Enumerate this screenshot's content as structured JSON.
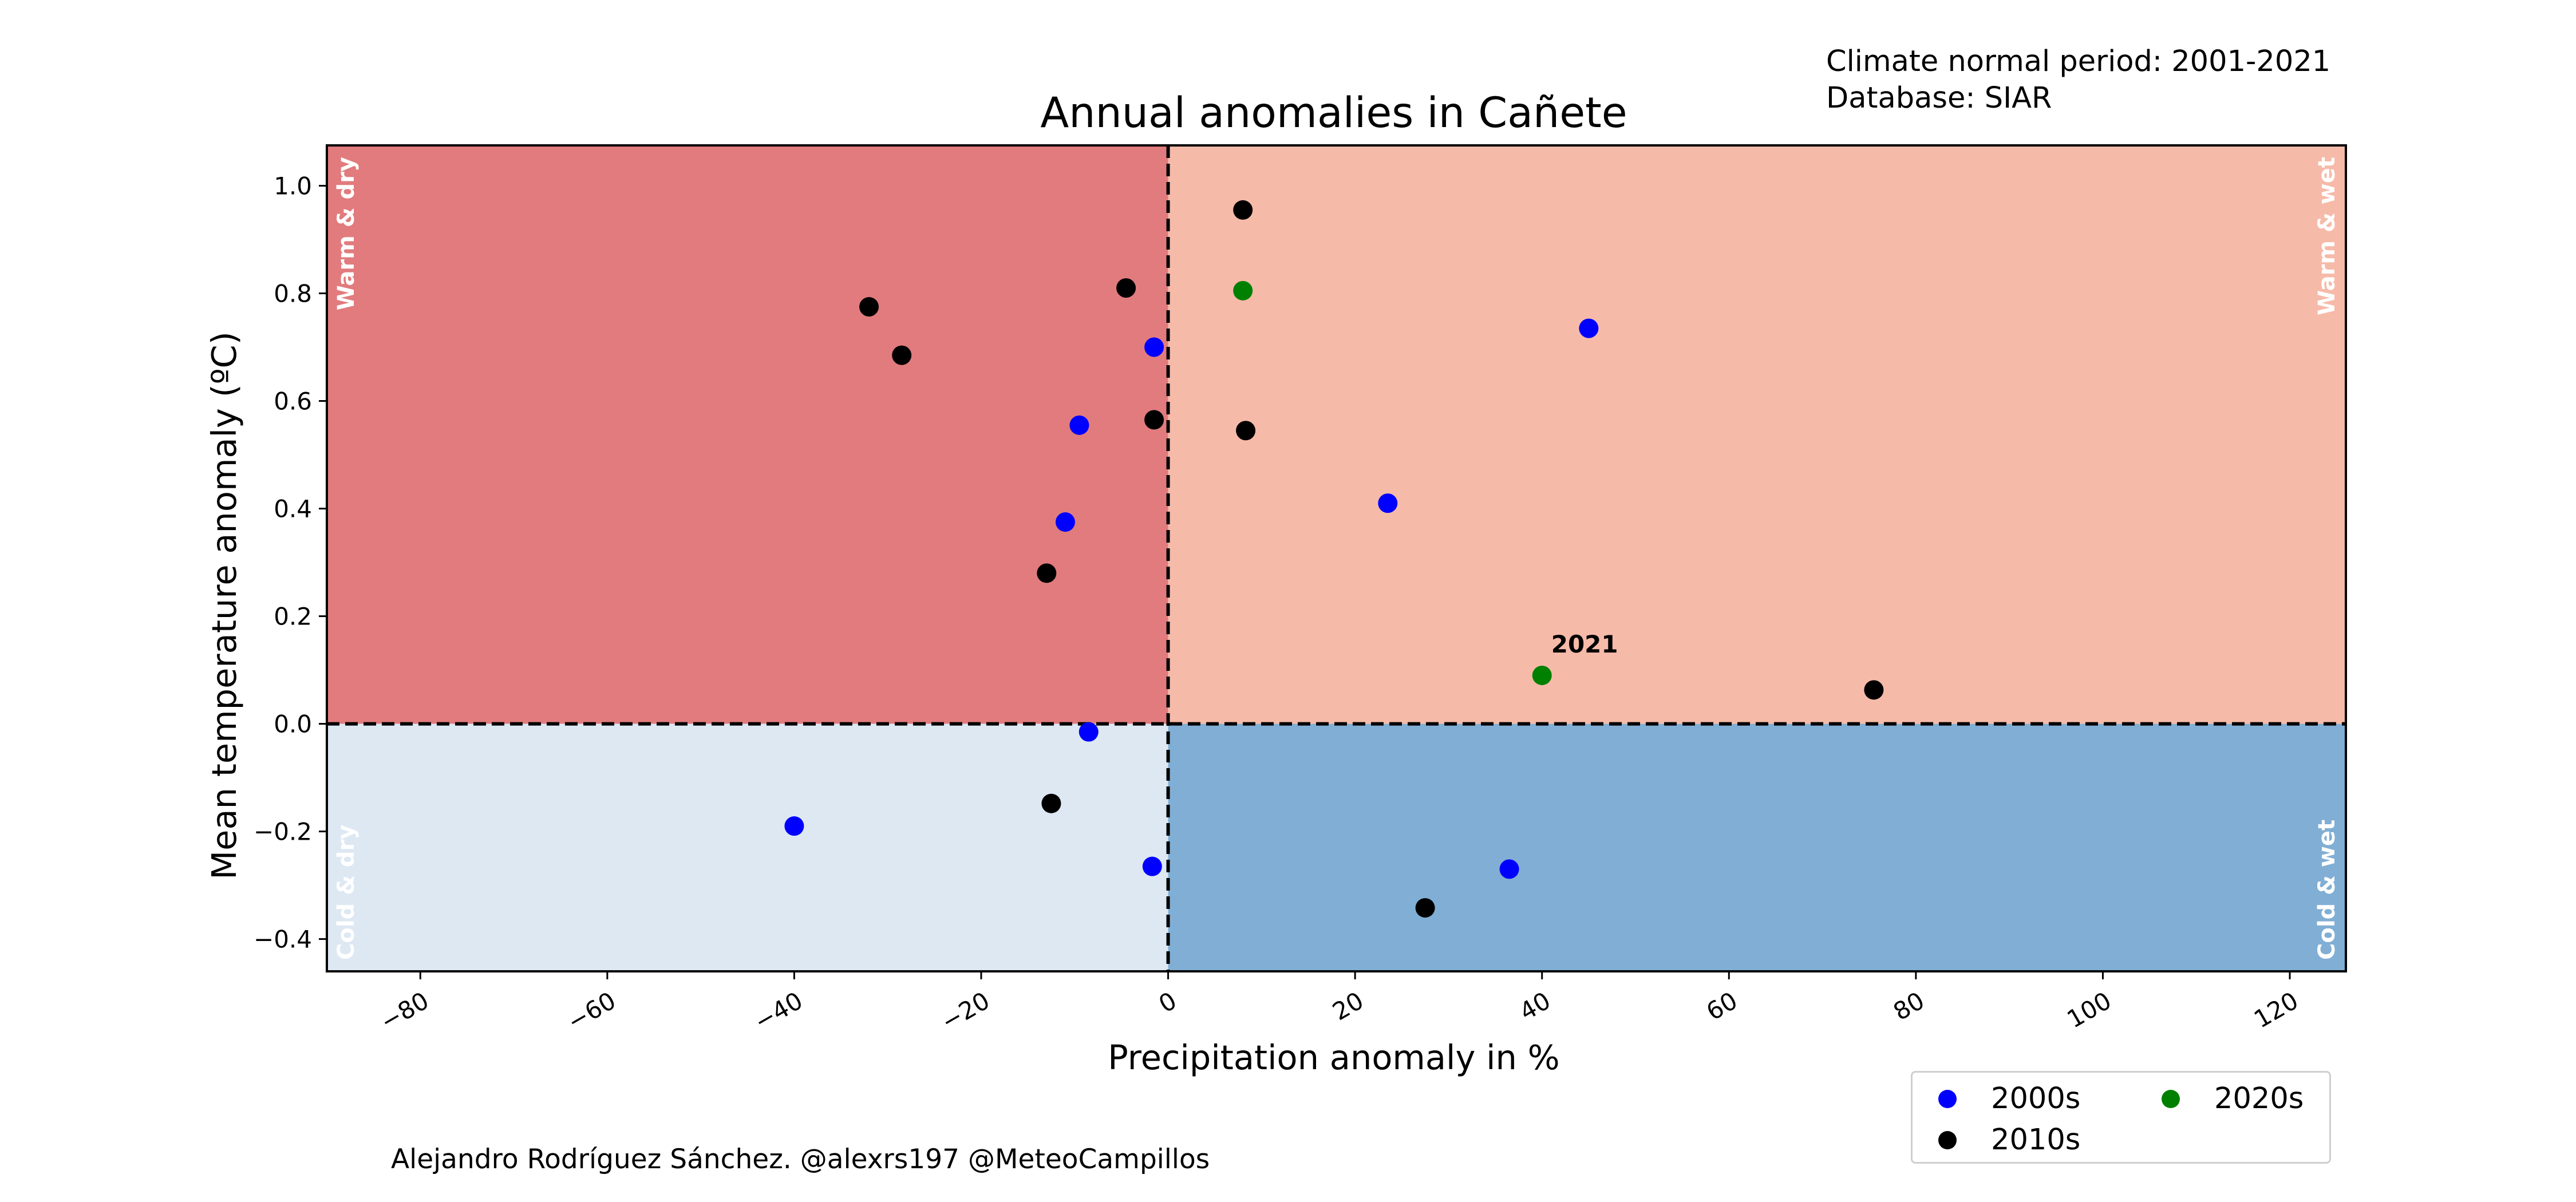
{
  "meta": {
    "period": "Climate normal period: 2001-2021",
    "database": "Database: SIAR"
  },
  "credit": "Alejandro Rodríguez Sánchez. @alexrs197 @MeteoCampillos",
  "colors": {
    "2000s": "#0000ff",
    "2010s": "#000000",
    "2020s": "#008000",
    "warm_dry": "#e17b7d",
    "warm_wet": "#f6baa9",
    "cold_dry": "#dde8f3",
    "cold_wet": "#81aed4"
  },
  "chart_data": {
    "type": "scatter",
    "title": "Annual anomalies in Cañete",
    "xlabel": "Precipitation anomaly in %",
    "ylabel": "Mean temperature anomaly (ºC)",
    "xlim": [
      -90,
      126
    ],
    "ylim": [
      -0.46,
      1.075
    ],
    "xticks": [
      -80,
      -60,
      -40,
      -20,
      0,
      20,
      40,
      60,
      80,
      100,
      120
    ],
    "yticks": [
      -0.4,
      -0.2,
      0.0,
      0.2,
      0.4,
      0.6,
      0.8,
      1.0
    ],
    "xtick_labels": [
      "−80",
      "−60",
      "−40",
      "−20",
      "0",
      "20",
      "40",
      "60",
      "80",
      "100",
      "120"
    ],
    "ytick_labels": [
      "−0.4",
      "−0.2",
      "0.0",
      "0.2",
      "0.4",
      "0.6",
      "0.8",
      "1.0"
    ],
    "quadrant_labels": {
      "warm_dry": "Warm & dry",
      "warm_wet": "Warm & wet",
      "cold_dry": "Cold & dry",
      "cold_wet": "Cold & wet"
    },
    "grid": false,
    "legend_position": "below-right",
    "series": [
      {
        "name": "2000s",
        "points": [
          [
            -40,
            -0.19
          ],
          [
            -11,
            0.375
          ],
          [
            -9.5,
            0.555
          ],
          [
            -8.5,
            -0.015
          ],
          [
            -1.5,
            0.7
          ],
          [
            -1.7,
            -0.265
          ],
          [
            23.5,
            0.41
          ],
          [
            36.5,
            -0.27
          ],
          [
            45,
            0.735
          ]
        ]
      },
      {
        "name": "2010s",
        "points": [
          [
            -32,
            0.775
          ],
          [
            -28.5,
            0.685
          ],
          [
            -13,
            0.28
          ],
          [
            -12.5,
            -0.148
          ],
          [
            -4.5,
            0.81
          ],
          [
            -1.5,
            0.565
          ],
          [
            8,
            0.955
          ],
          [
            8.3,
            0.545
          ],
          [
            27.5,
            -0.342
          ],
          [
            75.5,
            0.063
          ]
        ]
      },
      {
        "name": "2020s",
        "points": [
          [
            8,
            0.805
          ],
          [
            40,
            0.09
          ]
        ]
      }
    ],
    "annotations": [
      {
        "text": "2021",
        "x": 40,
        "y": 0.09
      }
    ]
  }
}
